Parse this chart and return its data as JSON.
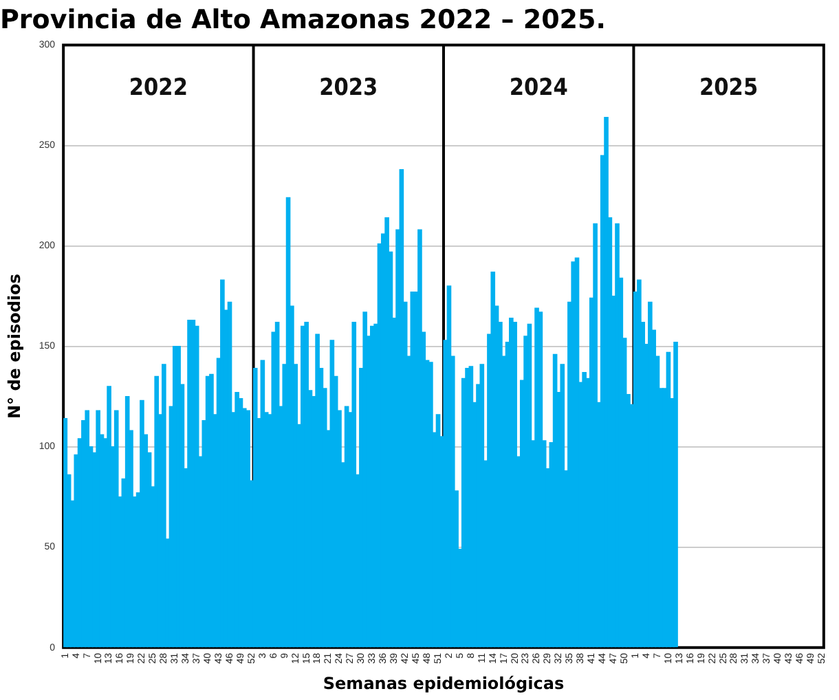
{
  "chart_data": {
    "type": "bar",
    "title": "Provincia de Alto Amazonas 2022 – 2025.",
    "xlabel": "Semanas epidemiológicas",
    "ylabel": "N° de episodios",
    "annotations": [
      "2022",
      "2023",
      "2024",
      "2025"
    ],
    "categories": [
      "1",
      null,
      null,
      "4",
      null,
      null,
      "7",
      null,
      null,
      "10",
      null,
      null,
      "13",
      null,
      null,
      "16",
      null,
      null,
      "19",
      null,
      null,
      "22",
      null,
      null,
      "25",
      null,
      null,
      "28",
      null,
      null,
      "31",
      null,
      null,
      "34",
      null,
      null,
      "37",
      null,
      null,
      "40",
      null,
      null,
      "43",
      null,
      null,
      "46",
      null,
      null,
      "49",
      null,
      null,
      "52",
      null,
      null,
      "3",
      null,
      null,
      "6",
      null,
      null,
      "9",
      null,
      null,
      "12",
      null,
      null,
      "15",
      null,
      null,
      "18",
      null,
      null,
      "21",
      null,
      null,
      "24",
      null,
      null,
      "27",
      null,
      null,
      "30",
      null,
      null,
      "33",
      null,
      null,
      "36",
      null,
      null,
      "39",
      null,
      null,
      "42",
      null,
      null,
      "45",
      null,
      null,
      "48",
      null,
      null,
      "51",
      null,
      null,
      "2",
      null,
      null,
      "5",
      null,
      null,
      "8",
      null,
      null,
      "11",
      null,
      null,
      "14",
      null,
      null,
      "17",
      null,
      null,
      "20",
      null,
      null,
      "23",
      null,
      null,
      "26",
      null,
      null,
      "29",
      null,
      null,
      "32",
      null,
      null,
      "35",
      null,
      null,
      "38",
      null,
      null,
      "41",
      null,
      null,
      "44",
      null,
      null,
      "47",
      null,
      null,
      "50",
      null,
      null,
      "1",
      null,
      null,
      "4",
      null,
      null,
      "7",
      null,
      null,
      "10",
      null,
      null,
      "13",
      null,
      null,
      "16",
      null,
      null,
      "19",
      null,
      null,
      "22",
      null,
      null,
      "25",
      null,
      null,
      "28",
      null,
      null,
      "31",
      null,
      null,
      "34",
      null,
      null,
      "37",
      null,
      null,
      "40",
      null,
      null,
      "43",
      null,
      null,
      "46",
      null,
      null,
      "49",
      null,
      null,
      "52"
    ],
    "values": [
      114,
      86,
      73,
      96,
      104,
      113,
      118,
      100,
      97,
      118,
      106,
      104,
      130,
      100,
      118,
      75,
      84,
      125,
      108,
      75,
      77,
      123,
      106,
      97,
      80,
      135,
      116,
      141,
      54,
      120,
      150,
      150,
      131,
      89,
      163,
      163,
      160,
      95,
      113,
      135,
      136,
      116,
      144,
      183,
      168,
      172,
      117,
      127,
      124,
      119,
      118,
      83,
      139,
      114,
      143,
      117,
      116,
      157,
      162,
      120,
      141,
      224,
      170,
      141,
      111,
      160,
      162,
      128,
      125,
      156,
      139,
      129,
      108,
      153,
      135,
      118,
      92,
      120,
      117,
      162,
      86,
      139,
      167,
      155,
      160,
      161,
      201,
      206,
      214,
      197,
      164,
      208,
      238,
      172,
      145,
      177,
      177,
      208,
      157,
      143,
      142,
      107,
      116,
      105,
      153,
      180,
      145,
      78,
      49,
      134,
      139,
      140,
      122,
      131,
      141,
      93,
      156,
      187,
      170,
      162,
      145,
      152,
      164,
      162,
      95,
      133,
      155,
      161,
      103,
      169,
      167,
      103,
      89,
      102,
      146,
      127,
      141,
      88,
      172,
      192,
      194,
      132,
      137,
      134,
      174,
      211,
      122,
      245,
      264,
      214,
      175,
      211,
      184,
      154,
      126,
      121,
      177,
      183,
      162,
      151,
      172,
      158,
      145,
      129,
      129,
      147,
      124,
      152,
      null,
      null,
      null,
      null,
      null,
      null,
      null,
      null,
      null,
      null,
      null,
      null,
      null,
      null,
      null,
      null,
      null,
      null,
      null,
      null,
      null,
      null,
      null,
      null,
      null,
      null,
      null,
      null,
      null,
      null,
      null,
      null,
      null,
      null,
      null,
      null,
      null,
      null,
      null,
      null
    ],
    "color": "#00b0f0",
    "ylim": [
      0,
      300
    ],
    "yticks": [
      0,
      50,
      100,
      150,
      200,
      250,
      300
    ],
    "grid": "y",
    "legend": false
  }
}
